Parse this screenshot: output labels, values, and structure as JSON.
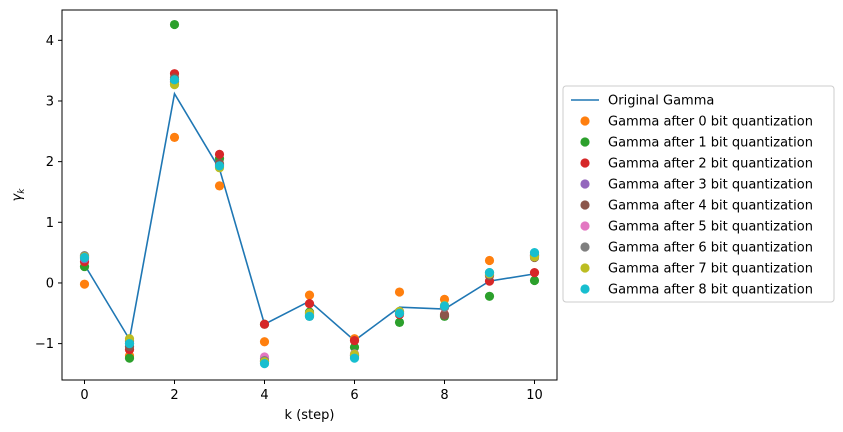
{
  "chart_data": {
    "type": "line",
    "xlabel": "k (step)",
    "ylabel": "γ",
    "ylabel_sub": "k",
    "xlim": [
      -0.5,
      10.5
    ],
    "ylim": [
      -1.6,
      4.5
    ],
    "x_ticks": [
      0,
      2,
      4,
      6,
      8,
      10
    ],
    "y_ticks": [
      -1,
      0,
      1,
      2,
      3,
      4
    ],
    "grid": false,
    "legend_position": "right",
    "x": [
      0,
      1,
      2,
      3,
      4,
      5,
      6,
      7,
      8,
      9,
      10
    ],
    "series": [
      {
        "name": "Original Gamma",
        "kind": "line",
        "color": "#1f77b4",
        "values": [
          0.3,
          -0.93,
          3.12,
          1.88,
          -0.68,
          -0.3,
          -0.95,
          -0.4,
          -0.43,
          0.03,
          0.15
        ]
      },
      {
        "name": "Gamma after 0 bit quantization",
        "kind": "scatter",
        "color": "#ff7f0e",
        "values": [
          -0.02,
          -1.2,
          2.4,
          1.6,
          -0.97,
          -0.2,
          -0.92,
          -0.15,
          -0.27,
          0.37,
          0.45
        ]
      },
      {
        "name": "Gamma after 1 bit quantization",
        "kind": "scatter",
        "color": "#2ca02c",
        "values": [
          0.27,
          -1.24,
          4.26,
          2.05,
          -0.68,
          -0.48,
          -1.06,
          -0.65,
          -0.55,
          -0.22,
          0.04
        ]
      },
      {
        "name": "Gamma after 2 bit quantization",
        "kind": "scatter",
        "color": "#d62728",
        "values": [
          0.35,
          -1.1,
          3.45,
          2.12,
          -0.68,
          -0.34,
          -0.95,
          -0.52,
          -0.52,
          0.03,
          0.17
        ]
      },
      {
        "name": "Gamma after 3 bit quantization",
        "kind": "scatter",
        "color": "#9467bd",
        "values": [
          0.4,
          -1.0,
          3.35,
          1.95,
          -1.25,
          -0.5,
          -1.2,
          -0.48,
          -0.4,
          0.14,
          0.45
        ]
      },
      {
        "name": "Gamma after 4 bit quantization",
        "kind": "scatter",
        "color": "#8c564b",
        "values": [
          0.42,
          -1.05,
          3.38,
          1.97,
          -1.3,
          -0.53,
          -1.19,
          -0.47,
          -0.53,
          0.12,
          0.42
        ]
      },
      {
        "name": "Gamma after 5 bit quantization",
        "kind": "scatter",
        "color": "#e377c2",
        "values": [
          0.44,
          -0.95,
          3.3,
          1.92,
          -1.22,
          -0.52,
          -1.17,
          -0.5,
          -0.4,
          0.15,
          0.44
        ]
      },
      {
        "name": "Gamma after 6 bit quantization",
        "kind": "scatter",
        "color": "#7f7f7f",
        "values": [
          0.45,
          -0.97,
          3.32,
          1.93,
          -1.28,
          -0.55,
          -1.22,
          -0.5,
          -0.4,
          0.17,
          0.47
        ]
      },
      {
        "name": "Gamma after 7 bit quantization",
        "kind": "scatter",
        "color": "#bcbd22",
        "values": [
          0.43,
          -0.92,
          3.27,
          1.9,
          -1.3,
          -0.5,
          -1.18,
          -0.47,
          -0.37,
          0.15,
          0.43
        ]
      },
      {
        "name": "Gamma after 8 bit quantization",
        "kind": "scatter",
        "color": "#17becf",
        "values": [
          0.42,
          -1.0,
          3.35,
          1.93,
          -1.33,
          -0.55,
          -1.24,
          -0.5,
          -0.38,
          0.17,
          0.5
        ]
      }
    ]
  }
}
